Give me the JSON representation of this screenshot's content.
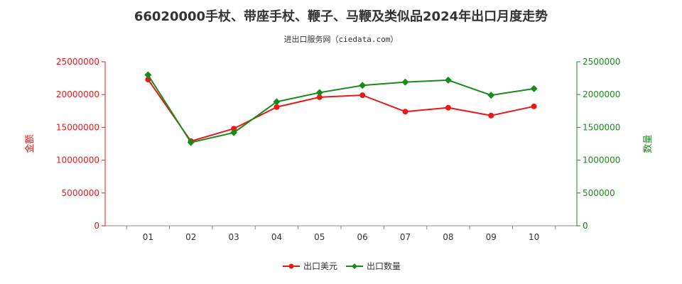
{
  "chart_data": {
    "type": "line",
    "title": "66020000手杖、带座手杖、鞭子、马鞭及类似品2024年出口月度走势",
    "subtitle": "进出口服务网（ciedata.com）",
    "categories": [
      "01",
      "02",
      "03",
      "04",
      "05",
      "06",
      "07",
      "08",
      "09",
      "10"
    ],
    "y_left": {
      "label": "金额",
      "ylim": [
        0,
        25000000
      ],
      "ticks": [
        "0",
        "5000000",
        "10000000",
        "15000000",
        "20000000",
        "25000000"
      ],
      "color": "#e8191b"
    },
    "y_right": {
      "label": "数量",
      "ylim": [
        0,
        2500000
      ],
      "ticks": [
        "0",
        "500000",
        "1000000",
        "1500000",
        "2000000",
        "2500000"
      ],
      "color": "#1a8a1a"
    },
    "series": [
      {
        "name": "出口美元",
        "axis": "left",
        "marker": "circle",
        "color": "#e8191b",
        "values": [
          22300000,
          12900000,
          14800000,
          18100000,
          19600000,
          19900000,
          17400000,
          18000000,
          16800000,
          18200000
        ]
      },
      {
        "name": "出口数量",
        "axis": "right",
        "marker": "diamond",
        "color": "#1a8a1a",
        "values": [
          2300000,
          1270000,
          1420000,
          1890000,
          2030000,
          2140000,
          2190000,
          2220000,
          1990000,
          2090000
        ]
      }
    ],
    "grid": false,
    "legend_position": "bottom-center"
  }
}
